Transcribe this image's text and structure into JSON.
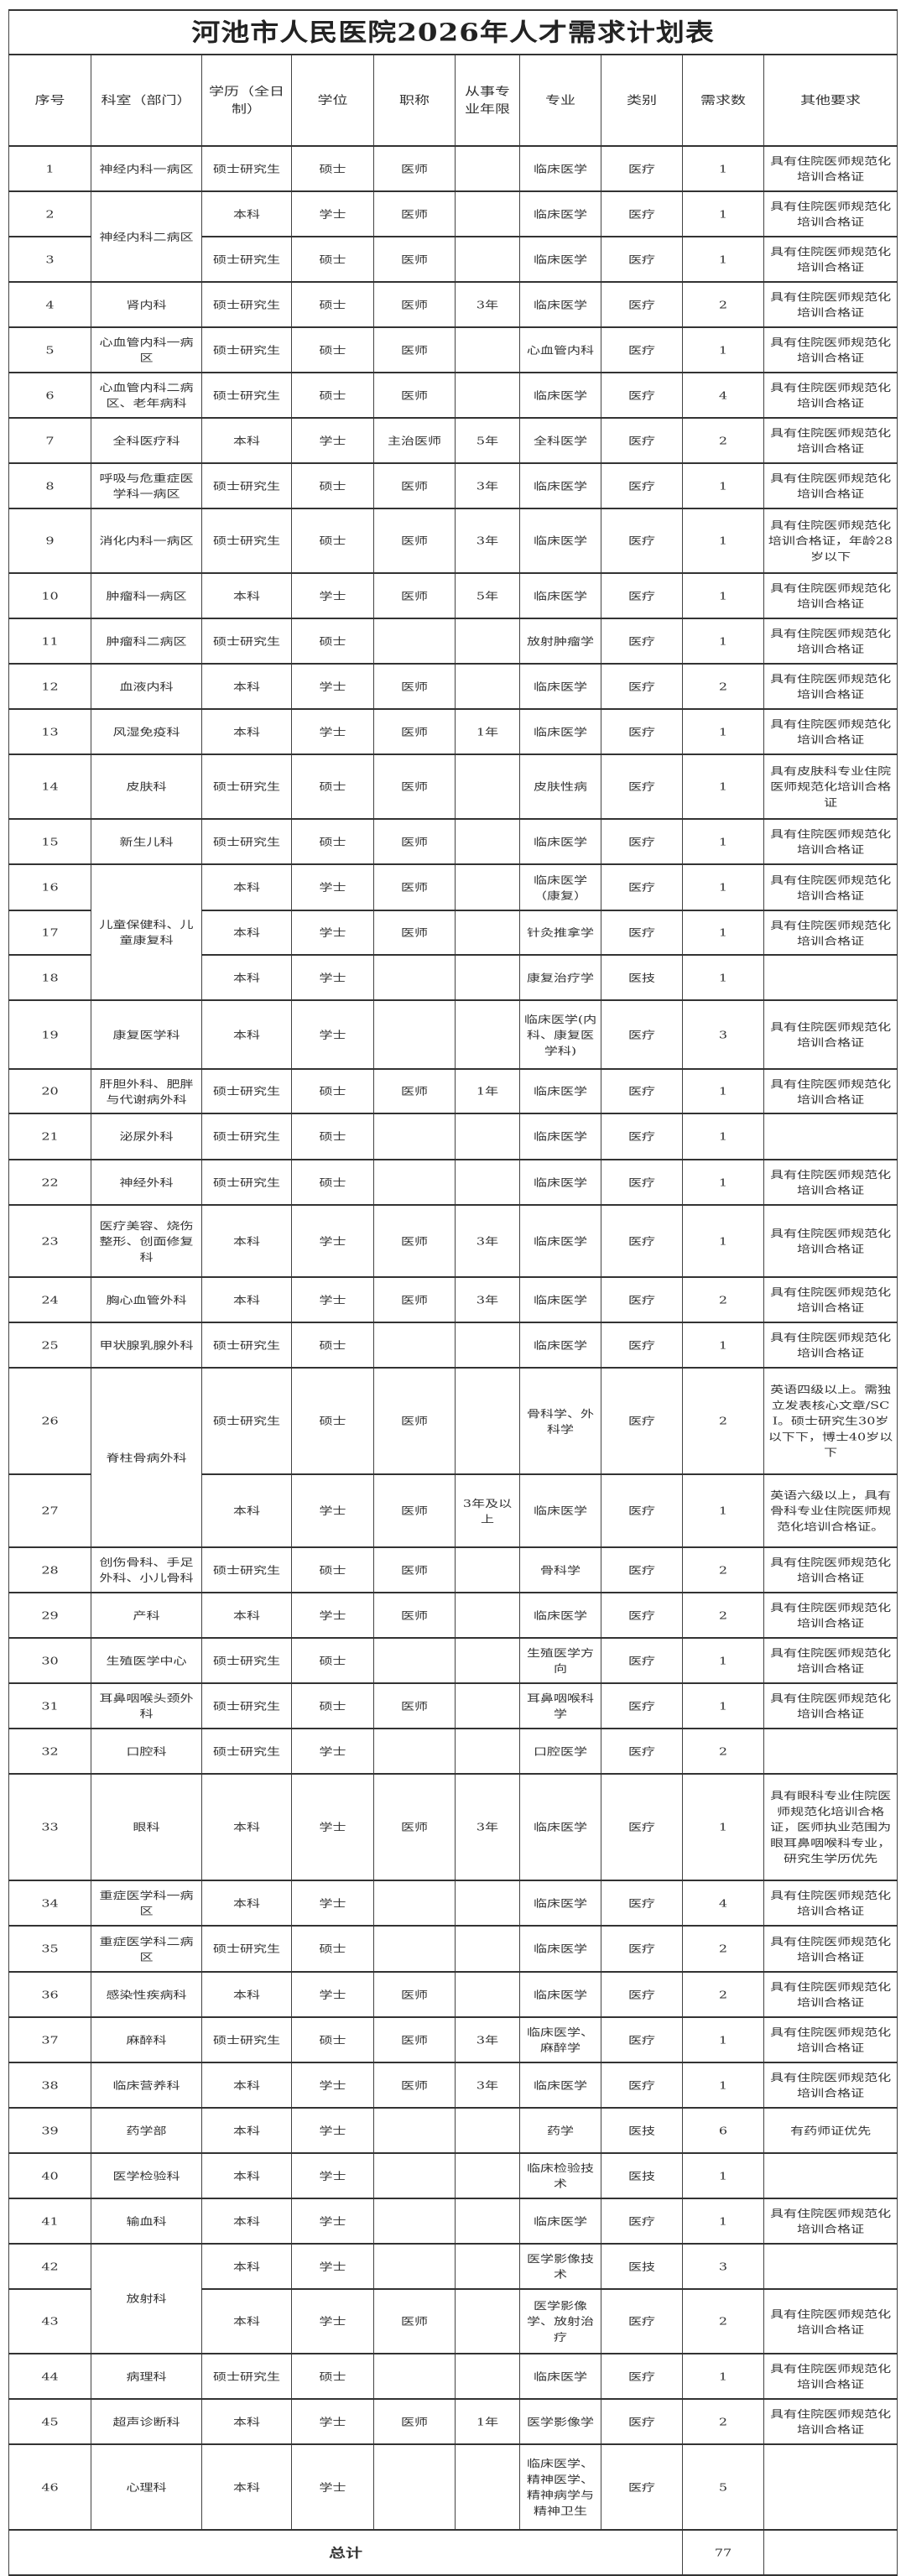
{
  "title": "河池市人民医院2026年人才需求计划表",
  "headers": [
    "序号",
    "科室（部门）",
    "学历（全日制）",
    "学位",
    "职称",
    "从事专业年限",
    "专业",
    "类别",
    "需求数",
    "其他要求"
  ],
  "rows": [
    [
      "1",
      "神经内科一病区",
      "硕士研究生",
      "硕士",
      "医师",
      "",
      "临床医学",
      "医疗",
      "1",
      "具有住院医师规范化培训合格证"
    ],
    [
      "2",
      "神经内科二病区",
      "本科",
      "学士",
      "医师",
      "",
      "临床医学",
      "医疗",
      "1",
      "具有住院医师规范化培训合格证"
    ],
    [
      "3",
      null,
      "硕士研究生",
      "硕士",
      "医师",
      "",
      "临床医学",
      "医疗",
      "1",
      "具有住院医师规范化培训合格证"
    ],
    [
      "4",
      "肾内科",
      "硕士研究生",
      "硕士",
      "医师",
      "3年",
      "临床医学",
      "医疗",
      "2",
      "具有住院医师规范化培训合格证"
    ],
    [
      "5",
      "心血管内科一病区",
      "硕士研究生",
      "硕士",
      "医师",
      "",
      "心血管内科",
      "医疗",
      "1",
      "具有住院医师规范化培训合格证"
    ],
    [
      "6",
      "心血管内科二病区、老年病科",
      "硕士研究生",
      "硕士",
      "医师",
      "",
      "临床医学",
      "医疗",
      "4",
      "具有住院医师规范化培训合格证"
    ],
    [
      "7",
      "全科医疗科",
      "本科",
      "学士",
      "主治医师",
      "5年",
      "全科医学",
      "医疗",
      "2",
      "具有住院医师规范化培训合格证"
    ],
    [
      "8",
      "呼吸与危重症医学科一病区",
      "硕士研究生",
      "硕士",
      "医师",
      "3年",
      "临床医学",
      "医疗",
      "1",
      "具有住院医师规范化培训合格证"
    ],
    [
      "9",
      "消化内科一病区",
      "硕士研究生",
      "硕士",
      "医师",
      "3年",
      "临床医学",
      "医疗",
      "1",
      "具有住院医师规范化培训合格证，年龄28岁以下"
    ],
    [
      "10",
      "肿瘤科一病区",
      "本科",
      "学士",
      "医师",
      "5年",
      "临床医学",
      "医疗",
      "1",
      "具有住院医师规范化培训合格证"
    ],
    [
      "11",
      "肿瘤科二病区",
      "硕士研究生",
      "硕士",
      "",
      "",
      "放射肿瘤学",
      "医疗",
      "1",
      "具有住院医师规范化培训合格证"
    ],
    [
      "12",
      "血液内科",
      "本科",
      "学士",
      "医师",
      "",
      "临床医学",
      "医疗",
      "2",
      "具有住院医师规范化培训合格证"
    ],
    [
      "13",
      "风湿免疫科",
      "本科",
      "学士",
      "医师",
      "1年",
      "临床医学",
      "医疗",
      "1",
      "具有住院医师规范化培训合格证"
    ],
    [
      "14",
      "皮肤科",
      "硕士研究生",
      "硕士",
      "医师",
      "",
      "皮肤性病",
      "医疗",
      "1",
      "具有皮肤科专业住院医师规范化培训合格证"
    ],
    [
      "15",
      "新生儿科",
      "硕士研究生",
      "硕士",
      "医师",
      "",
      "临床医学",
      "医疗",
      "1",
      "具有住院医师规范化培训合格证"
    ],
    [
      "16",
      "儿童保健科、儿童康复科",
      "本科",
      "学士",
      "医师",
      "",
      "临床医学（康复）",
      "医疗",
      "1",
      "具有住院医师规范化培训合格证"
    ],
    [
      "17",
      null,
      "本科",
      "学士",
      "医师",
      "",
      "针灸推拿学",
      "医疗",
      "1",
      "具有住院医师规范化培训合格证"
    ],
    [
      "18",
      null,
      "本科",
      "学士",
      "",
      "",
      "康复治疗学",
      "医技",
      "1",
      ""
    ],
    [
      "19",
      "康复医学科",
      "本科",
      "学士",
      "",
      "",
      "临床医学(内科、康复医学科)",
      "医疗",
      "3",
      "具有住院医师规范化培训合格证"
    ],
    [
      "20",
      "肝胆外科、肥胖与代谢病外科",
      "硕士研究生",
      "硕士",
      "医师",
      "1年",
      "临床医学",
      "医疗",
      "1",
      "具有住院医师规范化培训合格证"
    ],
    [
      "21",
      "泌尿外科",
      "硕士研究生",
      "硕士",
      "",
      "",
      "临床医学",
      "医疗",
      "1",
      ""
    ],
    [
      "22",
      "神经外科",
      "硕士研究生",
      "硕士",
      "",
      "",
      "临床医学",
      "医疗",
      "1",
      "具有住院医师规范化培训合格证"
    ],
    [
      "23",
      "医疗美容、烧伤整形、创面修复科",
      "本科",
      "学士",
      "医师",
      "3年",
      "临床医学",
      "医疗",
      "1",
      "具有住院医师规范化培训合格证"
    ],
    [
      "24",
      "胸心血管外科",
      "本科",
      "学士",
      "医师",
      "3年",
      "临床医学",
      "医疗",
      "2",
      "具有住院医师规范化培训合格证"
    ],
    [
      "25",
      "甲状腺乳腺外科",
      "硕士研究生",
      "硕士",
      "",
      "",
      "临床医学",
      "医疗",
      "1",
      "具有住院医师规范化培训合格证"
    ],
    [
      "26",
      "脊柱骨病外科",
      "硕士研究生",
      "硕士",
      "医师",
      "",
      "骨科学、外科学",
      "医疗",
      "2",
      "英语四级以上。需独立发表核心文章/SCI。硕士研究生30岁以下下，博士40岁以下"
    ],
    [
      "27",
      null,
      "本科",
      "学士",
      "医师",
      "3年及以上",
      "临床医学",
      "医疗",
      "1",
      "英语六级以上，具有骨科专业住院医师规范化培训合格证。"
    ],
    [
      "28",
      "创伤骨科、手足外科、小儿骨科",
      "硕士研究生",
      "硕士",
      "医师",
      "",
      "骨科学",
      "医疗",
      "2",
      "具有住院医师规范化培训合格证"
    ],
    [
      "29",
      "产科",
      "本科",
      "学士",
      "医师",
      "",
      "临床医学",
      "医疗",
      "2",
      "具有住院医师规范化培训合格证"
    ],
    [
      "30",
      "生殖医学中心",
      "硕士研究生",
      "硕士",
      "",
      "",
      "生殖医学方向",
      "医疗",
      "1",
      "具有住院医师规范化培训合格证"
    ],
    [
      "31",
      "耳鼻咽喉头颈外科",
      "硕士研究生",
      "硕士",
      "医师",
      "",
      "耳鼻咽喉科学",
      "医疗",
      "1",
      "具有住院医师规范化培训合格证"
    ],
    [
      "32",
      "口腔科",
      "硕士研究生",
      "学士",
      "",
      "",
      "口腔医学",
      "医疗",
      "2",
      ""
    ],
    [
      "33",
      "眼科",
      "本科",
      "学士",
      "医师",
      "3年",
      "临床医学",
      "医疗",
      "1",
      "具有眼科专业住院医师规范化培训合格证，医师执业范围为眼耳鼻咽喉科专业，研究生学历优先"
    ],
    [
      "34",
      "重症医学科一病区",
      "本科",
      "学士",
      "",
      "",
      "临床医学",
      "医疗",
      "4",
      "具有住院医师规范化培训合格证"
    ],
    [
      "35",
      "重症医学科二病区",
      "硕士研究生",
      "硕士",
      "",
      "",
      "临床医学",
      "医疗",
      "2",
      "具有住院医师规范化培训合格证"
    ],
    [
      "36",
      "感染性疾病科",
      "本科",
      "学士",
      "医师",
      "",
      "临床医学",
      "医疗",
      "2",
      "具有住院医师规范化培训合格证"
    ],
    [
      "37",
      "麻醉科",
      "硕士研究生",
      "硕士",
      "医师",
      "3年",
      "临床医学、麻醉学",
      "医疗",
      "1",
      "具有住院医师规范化培训合格证"
    ],
    [
      "38",
      "临床营养科",
      "本科",
      "学士",
      "医师",
      "3年",
      "临床医学",
      "医疗",
      "1",
      "具有住院医师规范化培训合格证"
    ],
    [
      "39",
      "药学部",
      "本科",
      "学士",
      "",
      "",
      "药学",
      "医技",
      "6",
      "有药师证优先"
    ],
    [
      "40",
      "医学检验科",
      "本科",
      "学士",
      "",
      "",
      "临床检验技术",
      "医技",
      "1",
      ""
    ],
    [
      "41",
      "输血科",
      "本科",
      "学士",
      "",
      "",
      "临床医学",
      "医疗",
      "1",
      "具有住院医师规范化培训合格证"
    ],
    [
      "42",
      "放射科",
      "本科",
      "学士",
      "",
      "",
      "医学影像技术",
      "医技",
      "3",
      ""
    ],
    [
      "43",
      null,
      "本科",
      "学士",
      "医师",
      "",
      "医学影像学、放射治疗",
      "医疗",
      "2",
      "具有住院医师规范化培训合格证"
    ],
    [
      "44",
      "病理科",
      "硕士研究生",
      "硕士",
      "",
      "",
      "临床医学",
      "医疗",
      "1",
      "具有住院医师规范化培训合格证"
    ],
    [
      "45",
      "超声诊断科",
      "本科",
      "学士",
      "医师",
      "1年",
      "医学影像学",
      "医疗",
      "2",
      "具有住院医师规范化培训合格证"
    ],
    [
      "46",
      "心理科",
      "本科",
      "学士",
      "",
      "",
      "临床医学、精神医学、精神病学与精神卫生",
      "医疗",
      "5",
      ""
    ]
  ],
  "total": {
    "label": "总计",
    "count": "77",
    "remarks": ""
  }
}
